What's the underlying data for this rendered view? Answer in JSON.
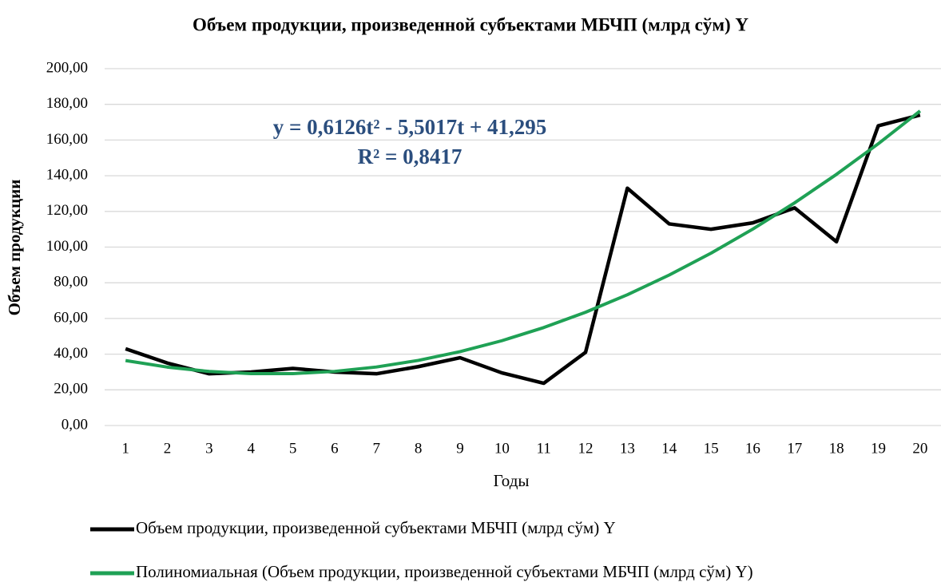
{
  "chart_data": {
    "type": "line",
    "title": "Объем продукции, произведенной субъектами МБЧП  (млрд сўм) Y",
    "x_label": "Годы",
    "y_label": "Объем продукции",
    "annotations": [
      "y = 0,6126t² - 5,5017t + 41,295",
      "R² = 0,8417"
    ],
    "categories": [
      "1",
      "2",
      "3",
      "4",
      "5",
      "6",
      "7",
      "8",
      "9",
      "10",
      "11",
      "12",
      "13",
      "14",
      "15",
      "16",
      "17",
      "18",
      "19",
      "20"
    ],
    "series": [
      {
        "name": "Объем продукции, произведенной субъектами МБЧП  (млрд сўм) Y",
        "color": "#000000",
        "values": [
          43,
          35,
          29,
          30,
          32,
          30,
          29,
          33,
          38,
          29.5,
          23.7,
          41,
          133,
          113,
          110,
          113.6,
          122,
          103,
          168,
          174
        ]
      },
      {
        "name": "Полиномиальная (Объем продукции, произведенной субъектами МБЧП  (млрд сўм) Y)",
        "color": "#1fa155",
        "values": [
          36.41,
          32.74,
          30.3,
          29.09,
          29.1,
          30.34,
          32.8,
          36.49,
          41.4,
          47.54,
          54.9,
          63.49,
          73.3,
          84.34,
          96.6,
          110.09,
          124.81,
          140.75,
          157.91,
          176.3
        ]
      }
    ],
    "ylim": [
      0,
      200
    ],
    "yticks": [
      {
        "value": 0,
        "label": "0,00"
      },
      {
        "value": 20,
        "label": "20,00"
      },
      {
        "value": 40,
        "label": "40,00"
      },
      {
        "value": 60,
        "label": "60,00"
      },
      {
        "value": 80,
        "label": "80,00"
      },
      {
        "value": 100,
        "label": "100,00"
      },
      {
        "value": 120,
        "label": "120,00"
      },
      {
        "value": 140,
        "label": "140,00"
      },
      {
        "value": 160,
        "label": "160,00"
      },
      {
        "value": 180,
        "label": "180,00"
      },
      {
        "value": 200,
        "label": "200,00"
      }
    ],
    "grid": true,
    "legend": "bottom"
  }
}
